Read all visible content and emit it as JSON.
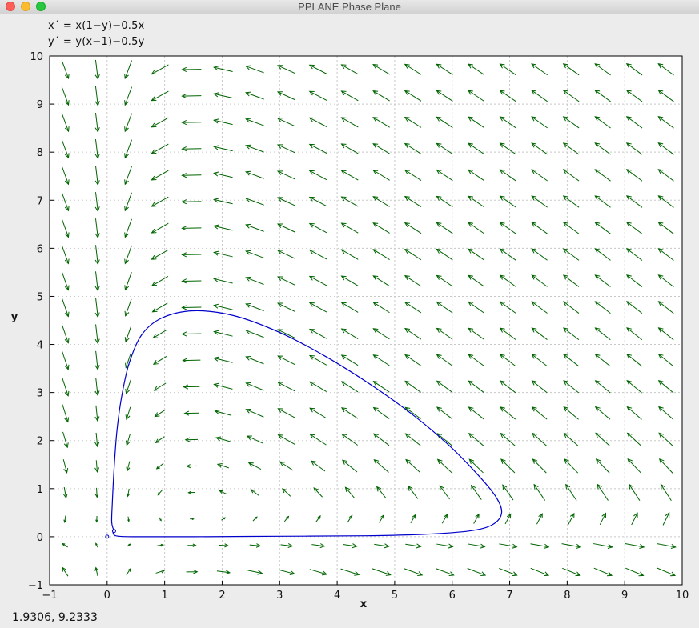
{
  "window": {
    "title": "PPLANE Phase Plane"
  },
  "equations": {
    "xprime": "x´ = x(1−y)−0.5x",
    "yprime": "y´ = y(x−1)−0.5y"
  },
  "status": {
    "coordinates": "1.9306,  9.2333"
  },
  "chart_data": {
    "type": "scatter",
    "subtype": "phase-plane-direction-field",
    "title": "",
    "xlabel": "x",
    "ylabel": "y",
    "xlim": [
      -1,
      10
    ],
    "ylim": [
      -1,
      10
    ],
    "xticks": [
      -1,
      0,
      1,
      2,
      3,
      4,
      5,
      6,
      7,
      8,
      9,
      10
    ],
    "yticks": [
      -1,
      0,
      1,
      2,
      3,
      4,
      5,
      6,
      7,
      8,
      9,
      10
    ],
    "grid": true,
    "system": {
      "dx": "x*(1-y) - 0.5*x",
      "dy": "y*(x-1) - 0.5*y"
    },
    "field_grid": {
      "x_start": -0.73,
      "x_step": 0.55,
      "nx": 20,
      "y_start": -0.73,
      "y_step": 0.55,
      "ny": 20
    },
    "trajectory": {
      "start": [
        0.12,
        0.12
      ],
      "equilibrium": [
        0,
        0
      ],
      "points": [
        [
          0.12,
          0.12
        ],
        [
          0.08,
          0.3
        ],
        [
          0.09,
          0.7
        ],
        [
          0.12,
          1.4
        ],
        [
          0.17,
          2.2
        ],
        [
          0.25,
          2.9
        ],
        [
          0.38,
          3.6
        ],
        [
          0.6,
          4.2
        ],
        [
          0.95,
          4.55
        ],
        [
          1.5,
          4.7
        ],
        [
          2.2,
          4.6
        ],
        [
          3.0,
          4.25
        ],
        [
          3.8,
          3.75
        ],
        [
          4.6,
          3.15
        ],
        [
          5.3,
          2.55
        ],
        [
          5.9,
          1.95
        ],
        [
          6.4,
          1.35
        ],
        [
          6.75,
          0.85
        ],
        [
          6.86,
          0.5
        ],
        [
          6.7,
          0.25
        ],
        [
          6.3,
          0.12
        ],
        [
          5.5,
          0.05
        ],
        [
          4.5,
          0.02
        ],
        [
          3.0,
          0.01
        ],
        [
          1.5,
          0.0
        ],
        [
          0.5,
          0.0
        ],
        [
          0.2,
          0.01
        ],
        [
          0.12,
          0.04
        ],
        [
          0.1,
          0.1
        ]
      ]
    },
    "colors": {
      "field": "#006400",
      "trajectory": "#0000cc",
      "grid": "#c8c8c8"
    }
  }
}
